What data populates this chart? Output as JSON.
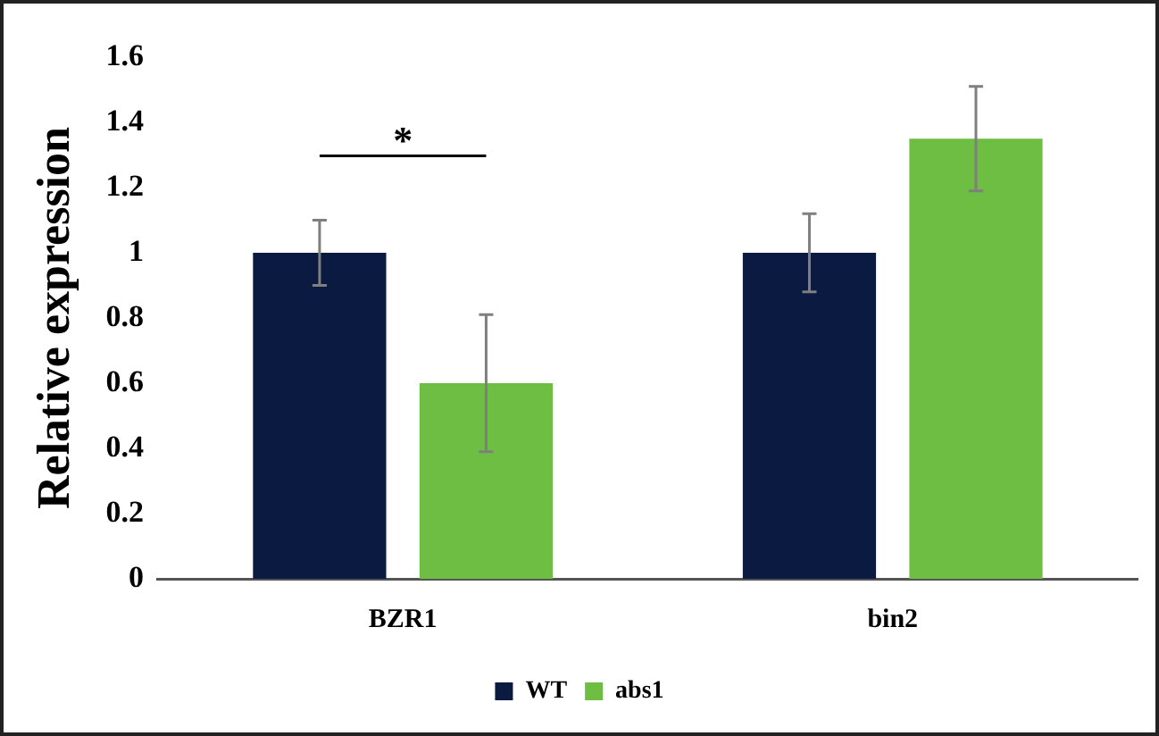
{
  "chart_data": {
    "type": "bar",
    "ylabel": "Relative expression",
    "categories": [
      "BZR1",
      "bin2"
    ],
    "series": [
      {
        "name": "WT",
        "color": "#0b1a40",
        "values": [
          1,
          1
        ],
        "errors": [
          0.1,
          0.12
        ]
      },
      {
        "name": "abs1",
        "color": "#6fbe44",
        "values": [
          0.6,
          1.35
        ],
        "errors": [
          0.21,
          0.16
        ]
      }
    ],
    "ylim": [
      0,
      1.6
    ],
    "yticks": [
      0,
      0.2,
      0.4,
      0.6,
      0.8,
      1,
      1.2,
      1.4,
      1.6
    ],
    "grid": false,
    "legend": "bottom",
    "annotations": [
      "*"
    ]
  }
}
